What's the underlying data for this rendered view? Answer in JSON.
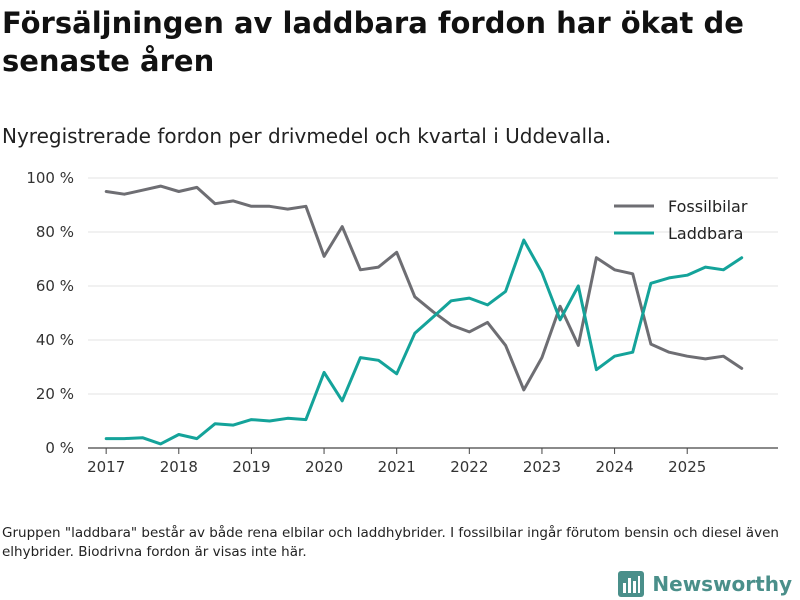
{
  "title": "Försäljningen av laddbara fordon har ökat de senaste åren",
  "subtitle": "Nyregistrerade fordon per drivmedel och kvartal i Uddevalla.",
  "footnote": "Gruppen \"laddbara\" består av både rena elbilar och laddhybrider. I fossilbilar ingår förutom bensin och diesel även elhybrider. Biodrivna fordon är visas inte här.",
  "brand": {
    "name": "Newsworthy",
    "icon": "bar-chart-logo-icon",
    "color": "#4a8f8a"
  },
  "chart_data": {
    "type": "line",
    "title": "Nyregistrerade fordon per drivmedel och kvartal i Uddevalla.",
    "xlabel": "",
    "ylabel": "",
    "x": [
      2017,
      2017.25,
      2017.5,
      2017.75,
      2018,
      2018.25,
      2018.5,
      2018.75,
      2019,
      2019.25,
      2019.5,
      2019.75,
      2020,
      2020.25,
      2020.5,
      2020.75,
      2021,
      2021.25,
      2021.5,
      2021.75,
      2022,
      2022.25,
      2022.5,
      2022.75,
      2023,
      2023.25,
      2023.5,
      2023.75,
      2024,
      2024.25,
      2024.5,
      2024.75,
      2025,
      2025.25,
      2025.5,
      2025.75
    ],
    "xlim": [
      2016.75,
      2026.25
    ],
    "x_ticks": [
      2017,
      2018,
      2019,
      2020,
      2021,
      2022,
      2023,
      2024,
      2025
    ],
    "x_tick_labels": [
      "2017",
      "2018",
      "2019",
      "2020",
      "2021",
      "2022",
      "2023",
      "2024",
      "2025"
    ],
    "ylim": [
      0,
      100
    ],
    "y_ticks": [
      0,
      20,
      40,
      60,
      80,
      100
    ],
    "y_tick_labels": [
      "0 %",
      "20 %",
      "40 %",
      "60 %",
      "80 %",
      "100 %"
    ],
    "grid": true,
    "legend_position": "top-right",
    "series": [
      {
        "name": "Fossilbilar",
        "color": "#6e6e73",
        "values": [
          95,
          94,
          95.5,
          97,
          95,
          96.5,
          90.5,
          91.5,
          89.5,
          89.5,
          88.5,
          89.5,
          71,
          82,
          66,
          67,
          72.5,
          56,
          50.5,
          45.5,
          43,
          46.5,
          38,
          21.5,
          33.5,
          52.5,
          38,
          70.5,
          66,
          64.5,
          38.5,
          35.5,
          34,
          33,
          34,
          29.5
        ]
      },
      {
        "name": "Laddbara",
        "color": "#14a39a",
        "values": [
          3.5,
          3.5,
          3.8,
          1.5,
          5,
          3.5,
          9,
          8.5,
          10.5,
          10,
          11,
          10.5,
          28,
          17.5,
          33.5,
          32.5,
          27.5,
          42.5,
          48.5,
          54.5,
          55.5,
          53,
          58,
          77,
          65,
          47.5,
          60,
          29,
          34,
          35.5,
          61,
          63,
          64,
          67,
          66,
          70.5
        ]
      }
    ]
  }
}
